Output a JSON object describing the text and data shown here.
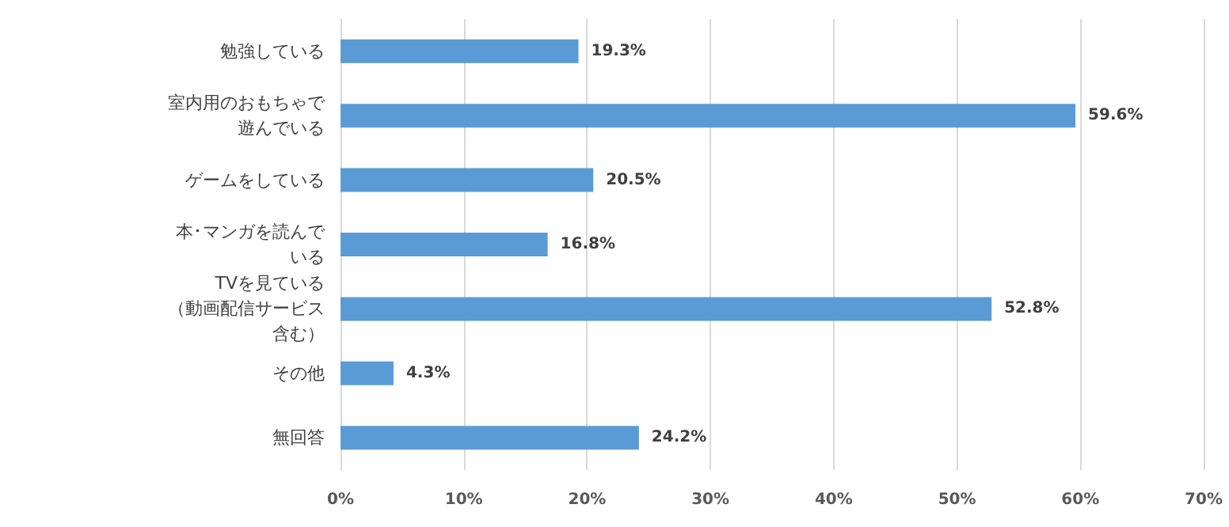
{
  "chart_data": {
    "type": "bar",
    "orientation": "horizontal",
    "categories": [
      "勉強している",
      "室内用のおもちゃで遊んでいる",
      "ゲームをしている",
      "本･マンガを読んでいる",
      "TVを見ている（動画配信サービス含む）",
      "その他",
      "無回答"
    ],
    "values": [
      19.3,
      59.6,
      20.5,
      16.8,
      52.8,
      4.3,
      24.2
    ],
    "value_labels": [
      "19.3%",
      "59.6%",
      "20.5%",
      "16.8%",
      "52.8%",
      "4.3%",
      "24.2%"
    ],
    "color": "#5b9bd5",
    "xlim": [
      0,
      70
    ],
    "xticks": [
      {
        "value": 0,
        "label": "0%"
      },
      {
        "value": 10,
        "label": "10%"
      },
      {
        "value": 20,
        "label": "20%"
      },
      {
        "value": 30,
        "label": "30%"
      },
      {
        "value": 40,
        "label": "40%"
      },
      {
        "value": 50,
        "label": "50%"
      },
      {
        "value": 60,
        "label": "60%"
      },
      {
        "value": 70,
        "label": "70%"
      }
    ],
    "grid": "x"
  }
}
